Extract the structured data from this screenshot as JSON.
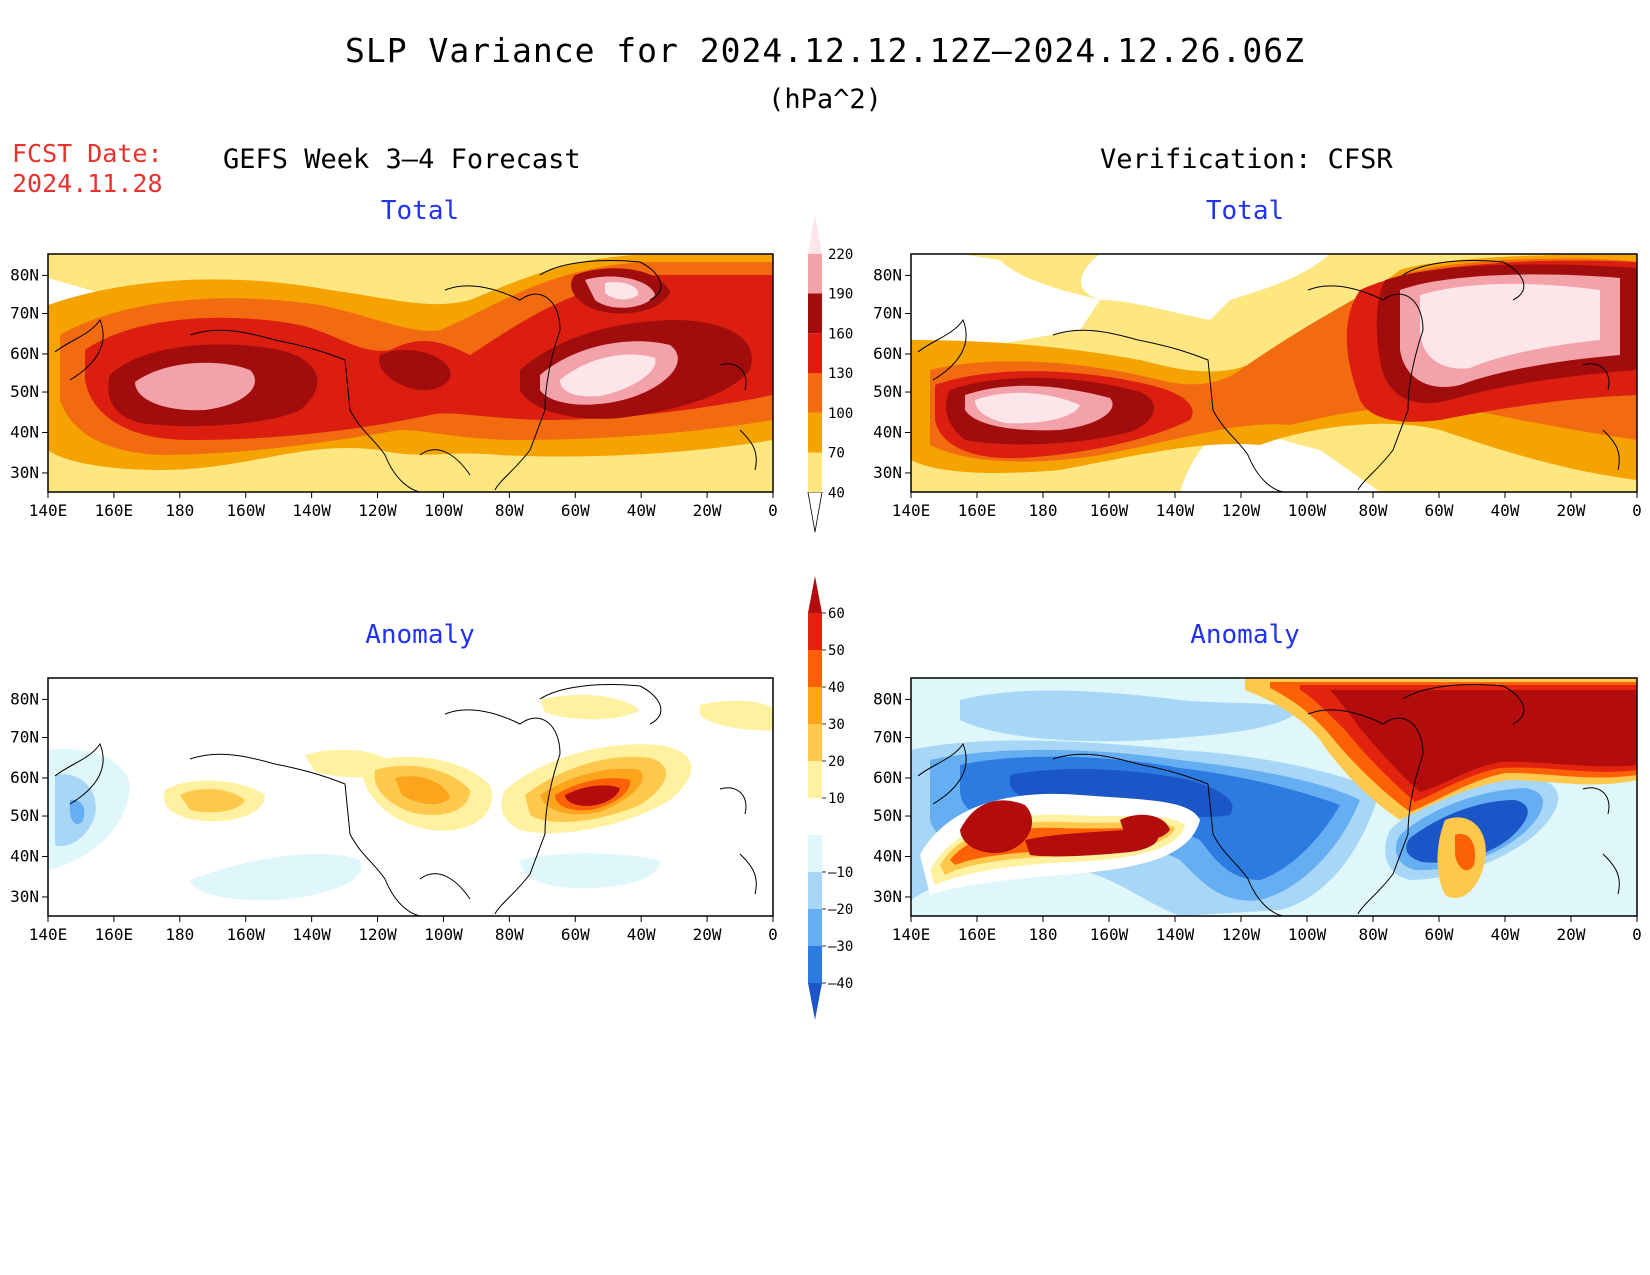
{
  "title": "SLP Variance for 2024.12.12.12Z–2024.12.26.06Z",
  "units": "(hPa^2)",
  "fcst_label": "FCST Date:",
  "fcst_date": "2024.11.28",
  "left_header": "GEFS Week 3–4 Forecast",
  "right_header": "Verification: CFSR",
  "panels": [
    {
      "id": "fc-total",
      "title": "Total",
      "field": "total"
    },
    {
      "id": "ver-total",
      "title": "Total",
      "field": "total"
    },
    {
      "id": "fc-anom",
      "title": "Anomaly",
      "field": "anomaly"
    },
    {
      "id": "ver-anom",
      "title": "Anomaly",
      "field": "anomaly"
    }
  ],
  "lon_labels": [
    "140E",
    "160E",
    "180",
    "160W",
    "140W",
    "120W",
    "100W",
    "80W",
    "60W",
    "40W",
    "20W",
    "0"
  ],
  "lat_labels": [
    "80N",
    "70N",
    "60N",
    "50N",
    "40N",
    "30N"
  ],
  "total_colorbar": {
    "labels": [
      "40",
      "70",
      "100",
      "130",
      "160",
      "190",
      "220"
    ],
    "colors": [
      "#fee680",
      "#f5a300",
      "#f36b10",
      "#db1e10",
      "#a10d0d",
      "#f2a2a8",
      "#fce6ea"
    ]
  },
  "anomaly_colorbar": {
    "labels": [
      "60",
      "50",
      "40",
      "30",
      "20",
      "10",
      "–10",
      "–20",
      "–30",
      "–40"
    ],
    "colors_top_down": [
      "#b30c0c",
      "#e2240f",
      "#fc6107",
      "#fca41c",
      "#fec84d",
      "#fff1a0",
      "#ffffff",
      "#dff7fb",
      "#a8d6f7",
      "#66aef2",
      "#2c7be0",
      "#1a56c8"
    ]
  }
}
